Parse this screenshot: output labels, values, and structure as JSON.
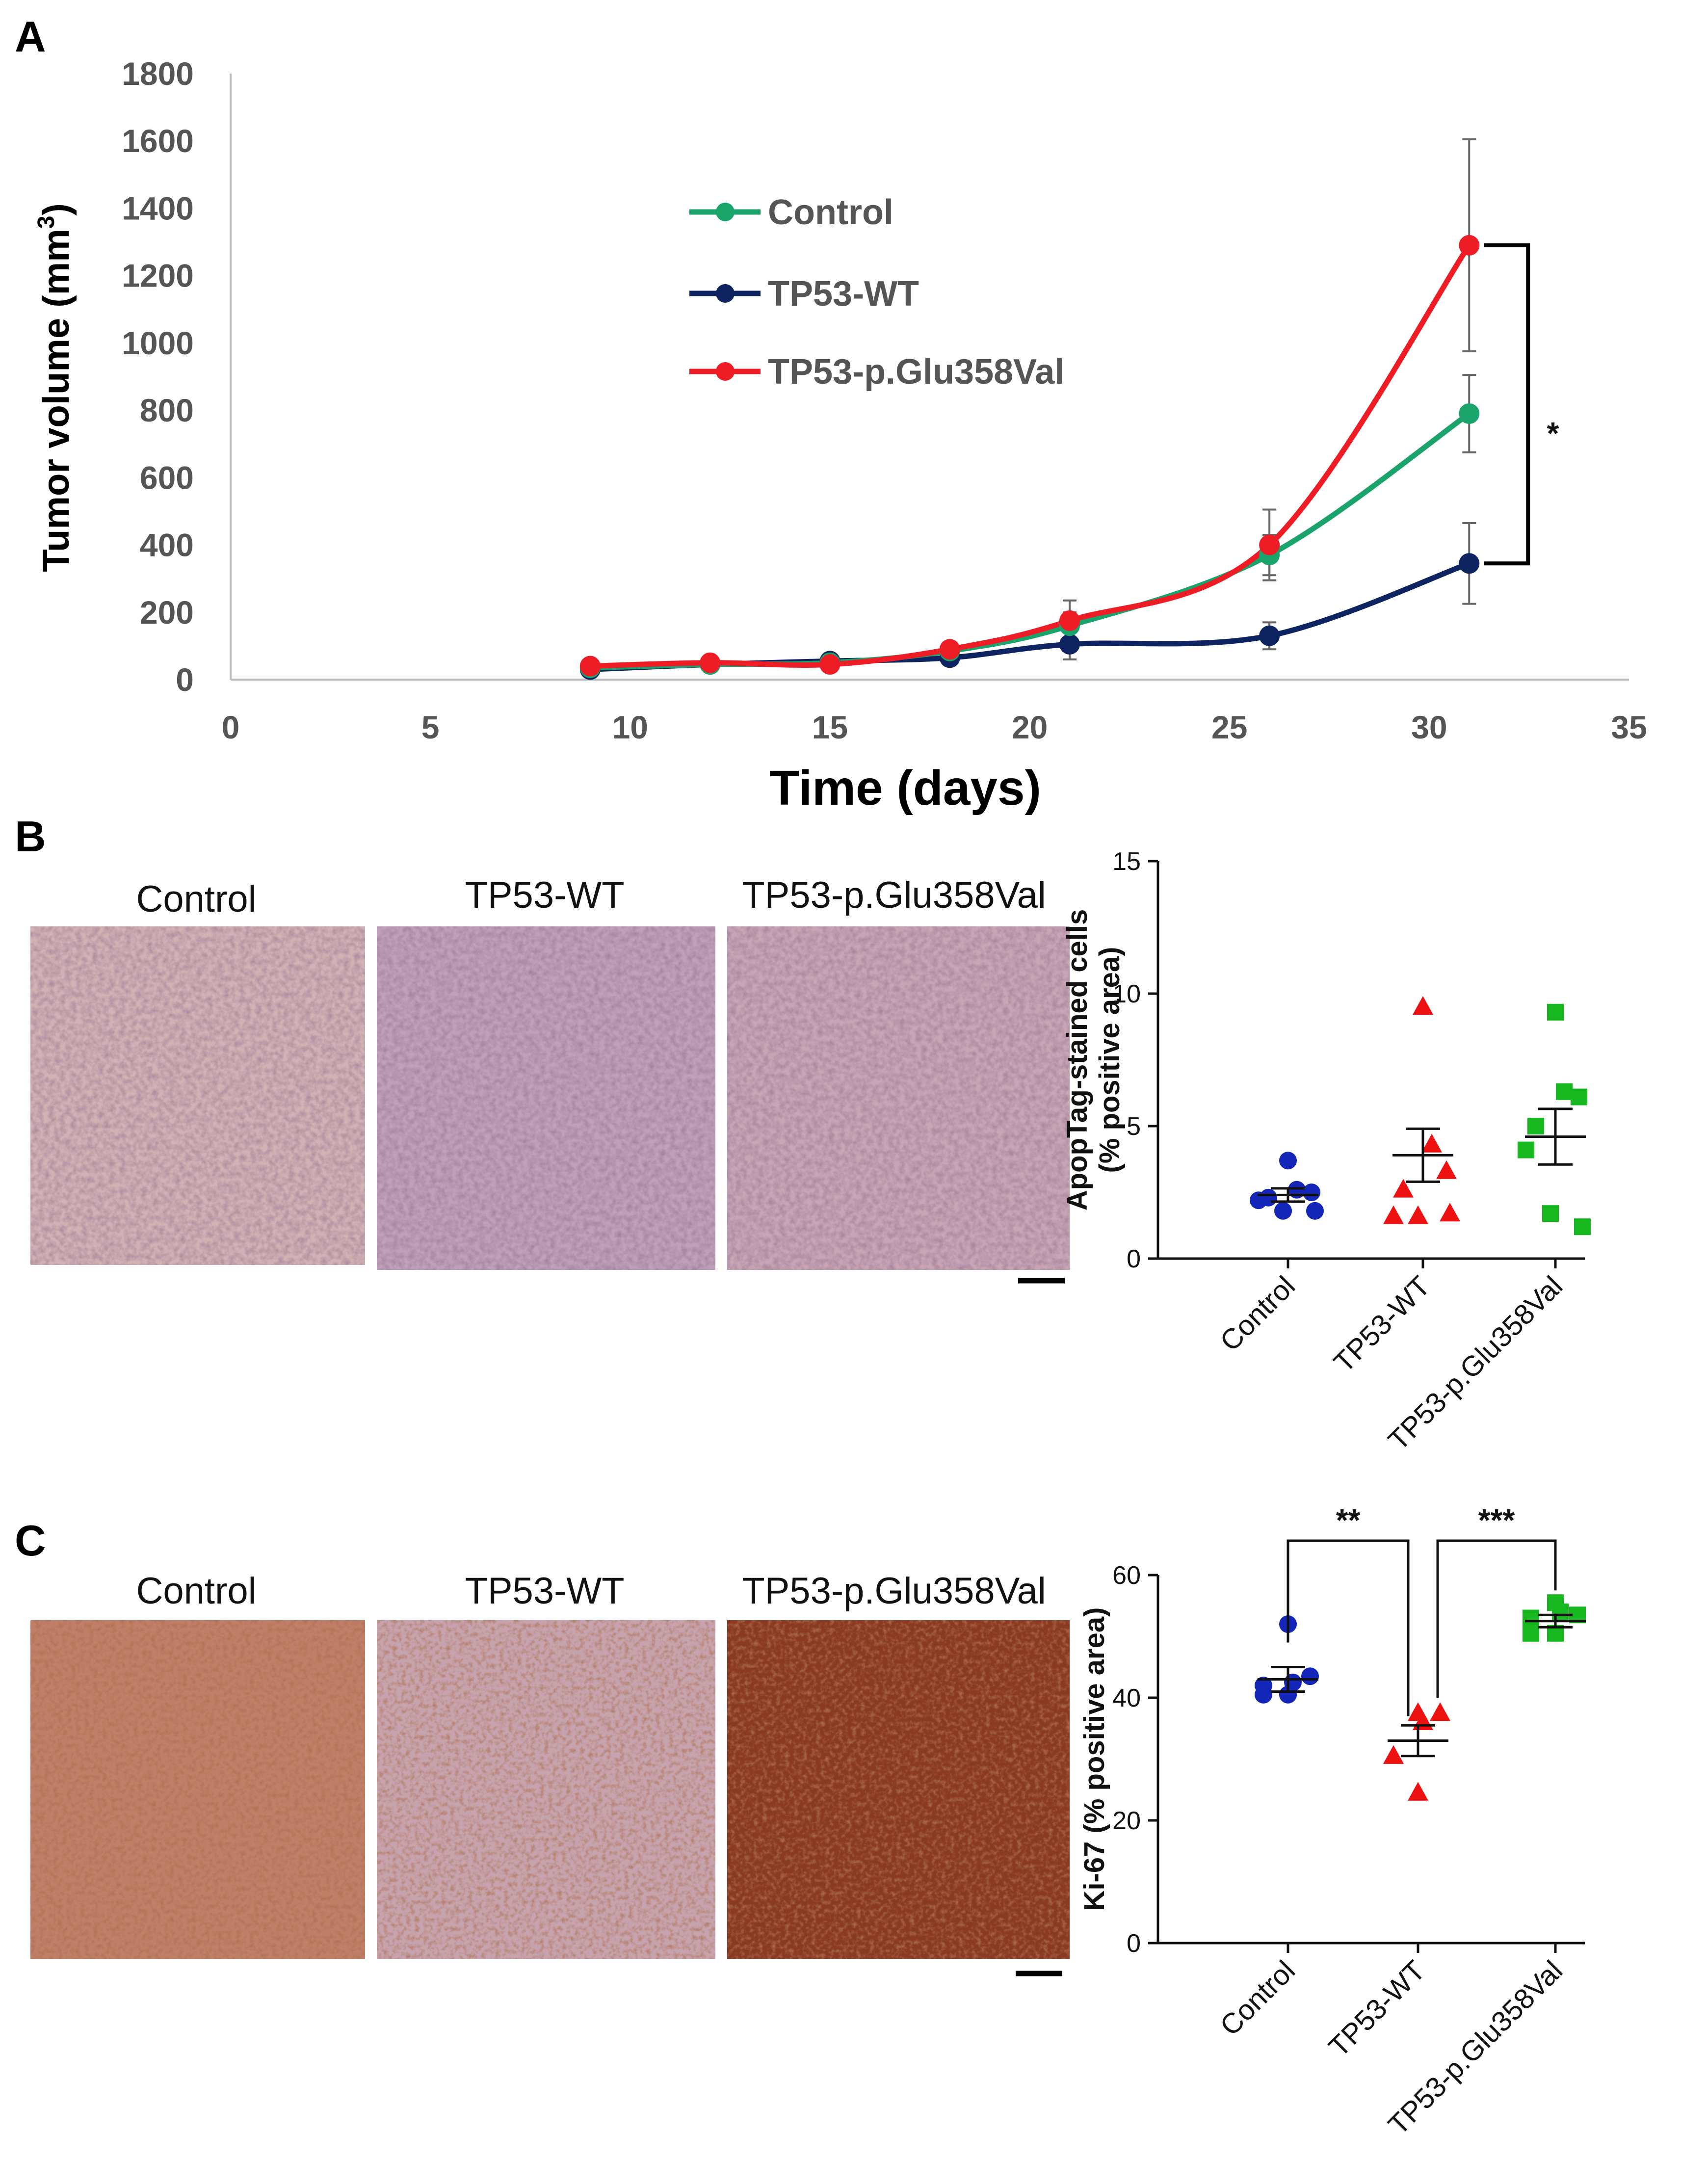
{
  "panels": {
    "a": "A",
    "b": "B",
    "c": "C"
  },
  "chart_data": [
    {
      "id": "A",
      "type": "line",
      "xlabel": "Time (days)",
      "ylabel": "Tumor volume (mm",
      "ylabel_sup": "3",
      "ylabel_close": ")",
      "xlim": [
        0,
        35
      ],
      "ylim": [
        0,
        1800
      ],
      "xticks": [
        0,
        5,
        10,
        15,
        20,
        25,
        30,
        35
      ],
      "yticks": [
        0,
        200,
        400,
        600,
        800,
        1000,
        1200,
        1400,
        1600,
        1800
      ],
      "x": [
        9,
        12,
        15,
        18,
        21,
        26,
        31
      ],
      "series": [
        {
          "name": "Control",
          "color": "#1aa36b",
          "values": [
            35,
            45,
            50,
            85,
            160,
            370,
            790
          ],
          "err": [
            5,
            5,
            5,
            10,
            40,
            60,
            115
          ]
        },
        {
          "name": "TP53-WT",
          "color": "#0d2461",
          "values": [
            30,
            45,
            55,
            65,
            105,
            130,
            345
          ],
          "err": [
            5,
            5,
            5,
            10,
            45,
            40,
            120
          ]
        },
        {
          "name": "TP53-p.Glu358Val",
          "color": "#ee1c24",
          "values": [
            40,
            50,
            45,
            90,
            175,
            400,
            1290
          ],
          "err": [
            5,
            5,
            5,
            10,
            60,
            105,
            315
          ]
        }
      ],
      "significance": "*"
    },
    {
      "id": "B",
      "type": "scatter",
      "ylabel_line1": "ApopTag-stained cells",
      "ylabel_line2": "(% positive area)",
      "ylim": [
        0,
        15
      ],
      "yticks": [
        0,
        5,
        10,
        15
      ],
      "categories": [
        "Control",
        "TP53-WT",
        "TP53-p.Glu358Val"
      ],
      "colors": [
        "#1426b8",
        "#ee1111",
        "#16b71f"
      ],
      "markers": [
        "circle",
        "triangle",
        "square"
      ],
      "points": [
        [
          3.7,
          2.6,
          2.5,
          2.3,
          2.2,
          1.8,
          1.8
        ],
        [
          9.5,
          4.3,
          3.3,
          2.6,
          1.6,
          1.6,
          1.7
        ],
        [
          9.3,
          6.3,
          6.1,
          5.0,
          4.1,
          1.7,
          1.2
        ]
      ],
      "mean": [
        2.4,
        3.9,
        4.6
      ],
      "sem": [
        0.25,
        1.0,
        1.05
      ]
    },
    {
      "id": "C",
      "type": "scatter",
      "ylabel": "Ki-67 (% positive area)",
      "ylim": [
        0,
        60
      ],
      "yticks": [
        0,
        20,
        40,
        60
      ],
      "categories": [
        "Control",
        "TP53-WT",
        "TP53-p.Glu358Val"
      ],
      "colors": [
        "#1426b8",
        "#ee1111",
        "#16b71f"
      ],
      "markers": [
        "circle",
        "triangle",
        "square"
      ],
      "points": [
        [
          52,
          43.5,
          42.5,
          42,
          40.5,
          40.5
        ],
        [
          37.5,
          37.5,
          36,
          30.5,
          30.5,
          24.5
        ],
        [
          55.5,
          53.5,
          54,
          53,
          50.5,
          50.5
        ]
      ],
      "mean": [
        43,
        33,
        52.5
      ],
      "sem": [
        2,
        2.5,
        1
      ],
      "significance": [
        {
          "from": 0,
          "to": 1,
          "label": "**"
        },
        {
          "from": 1,
          "to": 2,
          "label": "***"
        }
      ]
    }
  ],
  "images": {
    "b": [
      "Control",
      "TP53-WT",
      "TP53-p.Glu358Val"
    ],
    "c": [
      "Control",
      "TP53-WT",
      "TP53-p.Glu358Val"
    ]
  },
  "colors": {
    "ihc_b": [
      "#d2b2b5",
      "#bfa1bd",
      "#c9a5b6"
    ],
    "ihc_c": [
      "#bf7f68",
      "#c7a3ad",
      "#8a3a22"
    ]
  }
}
